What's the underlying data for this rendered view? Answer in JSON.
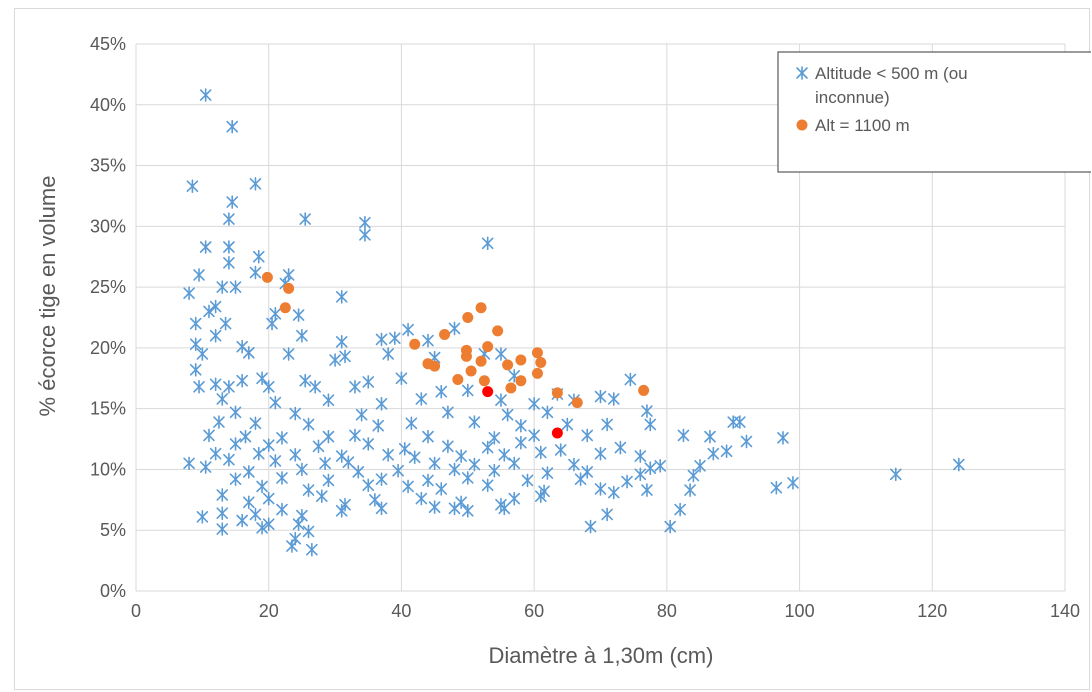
{
  "chart_data": {
    "type": "scatter",
    "xlabel": "Diamètre à 1,30m (cm)",
    "ylabel": "% écorce tige en volume",
    "xlim": [
      0,
      140
    ],
    "ylim": [
      0,
      45
    ],
    "x_ticks": [
      "0",
      "20",
      "40",
      "60",
      "80",
      "100",
      "120",
      "140"
    ],
    "y_ticks": [
      "0%",
      "5%",
      "10%",
      "15%",
      "20%",
      "25%",
      "30%",
      "35%",
      "40%",
      "45%"
    ],
    "grid": true,
    "legend_position": "top-right",
    "legend": [
      {
        "lines": [
          "Altitude < 500 m (ou",
          "inconnue)"
        ],
        "marker": "asterisk",
        "color": "#5b9bd5"
      },
      {
        "lines": [
          "Alt = 1100 m"
        ],
        "marker": "circle",
        "color": "#ed7d31"
      }
    ],
    "series": [
      {
        "name": "Altitude < 500 m (ou inconnue)",
        "marker": "asterisk",
        "color": "#5b9bd5",
        "points": [
          [
            10.5,
            40.8
          ],
          [
            14.5,
            38.2
          ],
          [
            8.5,
            33.3
          ],
          [
            18,
            33.5
          ],
          [
            14.5,
            32
          ],
          [
            14,
            30.6
          ],
          [
            25.5,
            30.6
          ],
          [
            34.5,
            30.3
          ],
          [
            34.5,
            29.3
          ],
          [
            10.5,
            28.3
          ],
          [
            14,
            28.3
          ],
          [
            53,
            28.6
          ],
          [
            18.5,
            27.5
          ],
          [
            14,
            27
          ],
          [
            9.5,
            26
          ],
          [
            18,
            26.2
          ],
          [
            23,
            26
          ],
          [
            13,
            25
          ],
          [
            15,
            25
          ],
          [
            8,
            24.5
          ],
          [
            22.5,
            25.3
          ],
          [
            31,
            24.2
          ],
          [
            11,
            23
          ],
          [
            21,
            22.8
          ],
          [
            24.5,
            22.7
          ],
          [
            12,
            23.4
          ],
          [
            9,
            22
          ],
          [
            13.5,
            22
          ],
          [
            20.5,
            22
          ],
          [
            25,
            21
          ],
          [
            41,
            21.5
          ],
          [
            12,
            21
          ],
          [
            9,
            20.3
          ],
          [
            39,
            20.8
          ],
          [
            44,
            20.6
          ],
          [
            48,
            21.6
          ],
          [
            37,
            20.7
          ],
          [
            31,
            20.5
          ],
          [
            16,
            20.1
          ],
          [
            10,
            19.5
          ],
          [
            17,
            19.6
          ],
          [
            23,
            19.5
          ],
          [
            31.5,
            19.3
          ],
          [
            38,
            19.5
          ],
          [
            52.5,
            19.5
          ],
          [
            55,
            19.5
          ],
          [
            9,
            18.2
          ],
          [
            30,
            19
          ],
          [
            45,
            19.2
          ],
          [
            12,
            17
          ],
          [
            16,
            17.3
          ],
          [
            19,
            17.5
          ],
          [
            25.5,
            17.3
          ],
          [
            35,
            17.2
          ],
          [
            40,
            17.5
          ],
          [
            74.5,
            17.4
          ],
          [
            57,
            17.7
          ],
          [
            9.5,
            16.8
          ],
          [
            14,
            16.8
          ],
          [
            20,
            16.8
          ],
          [
            27,
            16.8
          ],
          [
            33,
            16.8
          ],
          [
            46,
            16.4
          ],
          [
            50,
            16.5
          ],
          [
            63.5,
            16.2
          ],
          [
            70,
            16
          ],
          [
            13,
            15.8
          ],
          [
            21,
            15.5
          ],
          [
            29,
            15.7
          ],
          [
            37,
            15.4
          ],
          [
            43,
            15.8
          ],
          [
            55,
            15.7
          ],
          [
            60,
            15.4
          ],
          [
            66,
            15.7
          ],
          [
            72,
            15.8
          ],
          [
            77,
            14.8
          ],
          [
            15,
            14.7
          ],
          [
            24,
            14.6
          ],
          [
            34,
            14.5
          ],
          [
            47,
            14.7
          ],
          [
            56,
            14.5
          ],
          [
            62,
            14.7
          ],
          [
            12.5,
            13.9
          ],
          [
            18,
            13.8
          ],
          [
            26,
            13.7
          ],
          [
            36.5,
            13.6
          ],
          [
            41.5,
            13.8
          ],
          [
            51,
            13.9
          ],
          [
            58,
            13.6
          ],
          [
            65,
            13.7
          ],
          [
            71,
            13.7
          ],
          [
            77.5,
            13.7
          ],
          [
            90,
            13.9
          ],
          [
            91,
            13.9
          ],
          [
            11,
            12.8
          ],
          [
            16.5,
            12.7
          ],
          [
            22,
            12.6
          ],
          [
            29,
            12.7
          ],
          [
            33,
            12.8
          ],
          [
            44,
            12.7
          ],
          [
            54,
            12.6
          ],
          [
            60,
            12.8
          ],
          [
            68,
            12.8
          ],
          [
            82.5,
            12.8
          ],
          [
            86.5,
            12.7
          ],
          [
            97.5,
            12.6
          ],
          [
            92,
            12.3
          ],
          [
            15,
            12.1
          ],
          [
            20,
            12
          ],
          [
            27.5,
            11.9
          ],
          [
            35,
            12.1
          ],
          [
            40.5,
            11.7
          ],
          [
            47,
            11.9
          ],
          [
            53,
            11.8
          ],
          [
            58,
            12.2
          ],
          [
            64,
            11.6
          ],
          [
            73,
            11.8
          ],
          [
            89,
            11.5
          ],
          [
            12,
            11.3
          ],
          [
            18.5,
            11.3
          ],
          [
            24,
            11.2
          ],
          [
            31,
            11.1
          ],
          [
            38,
            11.2
          ],
          [
            42,
            11
          ],
          [
            49,
            11.1
          ],
          [
            55.5,
            11.2
          ],
          [
            61,
            11.4
          ],
          [
            70,
            11.3
          ],
          [
            76,
            11.1
          ],
          [
            87,
            11.3
          ],
          [
            8,
            10.5
          ],
          [
            14,
            10.8
          ],
          [
            21,
            10.7
          ],
          [
            28.5,
            10.5
          ],
          [
            32,
            10.6
          ],
          [
            45,
            10.5
          ],
          [
            51,
            10.4
          ],
          [
            57,
            10.5
          ],
          [
            66,
            10.4
          ],
          [
            79,
            10.3
          ],
          [
            85,
            10.3
          ],
          [
            124,
            10.4
          ],
          [
            10.5,
            10.2
          ],
          [
            17,
            9.8
          ],
          [
            25,
            10
          ],
          [
            33.5,
            9.8
          ],
          [
            39.5,
            9.9
          ],
          [
            48,
            10
          ],
          [
            54,
            9.9
          ],
          [
            62,
            9.7
          ],
          [
            68,
            9.8
          ],
          [
            76,
            9.6
          ],
          [
            77.5,
            10.1
          ],
          [
            114.5,
            9.6
          ],
          [
            15,
            9.2
          ],
          [
            22,
            9.3
          ],
          [
            29,
            9.1
          ],
          [
            37,
            9.2
          ],
          [
            44,
            9.1
          ],
          [
            50,
            9.3
          ],
          [
            59,
            9.1
          ],
          [
            67,
            9.2
          ],
          [
            74,
            9
          ],
          [
            84,
            9.5
          ],
          [
            99,
            8.9
          ],
          [
            19,
            8.6
          ],
          [
            26,
            8.3
          ],
          [
            35,
            8.7
          ],
          [
            41,
            8.6
          ],
          [
            46,
            8.4
          ],
          [
            53,
            8.7
          ],
          [
            61.5,
            8.2
          ],
          [
            70,
            8.4
          ],
          [
            77,
            8.3
          ],
          [
            83.5,
            8.3
          ],
          [
            96.5,
            8.5
          ],
          [
            13,
            7.9
          ],
          [
            20,
            7.6
          ],
          [
            28,
            7.8
          ],
          [
            36,
            7.5
          ],
          [
            43,
            7.6
          ],
          [
            49,
            7.3
          ],
          [
            57,
            7.6
          ],
          [
            61,
            7.8
          ],
          [
            72,
            8.1
          ],
          [
            17,
            7.3
          ],
          [
            22,
            6.7
          ],
          [
            31.5,
            7.1
          ],
          [
            37,
            6.8
          ],
          [
            45,
            6.9
          ],
          [
            50,
            6.6
          ],
          [
            55,
            7.1
          ],
          [
            10,
            6.1
          ],
          [
            13,
            6.4
          ],
          [
            18,
            6.3
          ],
          [
            25,
            6.2
          ],
          [
            31,
            6.6
          ],
          [
            48,
            6.8
          ],
          [
            55.5,
            6.8
          ],
          [
            71,
            6.3
          ],
          [
            82,
            6.7
          ],
          [
            16,
            5.8
          ],
          [
            20,
            5.5
          ],
          [
            24.5,
            5.5
          ],
          [
            19,
            5.2
          ],
          [
            13,
            5.1
          ],
          [
            26,
            4.9
          ],
          [
            68.5,
            5.3
          ],
          [
            80.5,
            5.3
          ],
          [
            24,
            4.3
          ],
          [
            23.5,
            3.7
          ],
          [
            26.5,
            3.4
          ]
        ]
      },
      {
        "name": "Alt = 1100 m",
        "marker": "circle",
        "color": "#ed7d31",
        "points": [
          [
            19.8,
            25.8
          ],
          [
            23,
            24.9
          ],
          [
            22.5,
            23.3
          ],
          [
            42,
            20.3
          ],
          [
            44,
            18.7
          ],
          [
            45,
            18.5
          ],
          [
            46.5,
            21.1
          ],
          [
            48.5,
            17.4
          ],
          [
            49.8,
            19.8
          ],
          [
            49.8,
            19.3
          ],
          [
            50,
            22.5
          ],
          [
            50.5,
            18.1
          ],
          [
            52,
            23.3
          ],
          [
            52,
            18.9
          ],
          [
            52.5,
            17.3
          ],
          [
            53,
            20.1
          ],
          [
            54.5,
            21.4
          ],
          [
            56,
            18.6
          ],
          [
            56.5,
            16.7
          ],
          [
            58,
            19
          ],
          [
            58,
            17.3
          ],
          [
            60.5,
            19.6
          ],
          [
            61,
            18.8
          ],
          [
            60.5,
            17.9
          ],
          [
            63.5,
            16.3
          ],
          [
            66.5,
            15.5
          ],
          [
            76.5,
            16.5
          ]
        ]
      },
      {
        "name": "",
        "marker": "circle",
        "color": "#ff0000",
        "points": [
          [
            53,
            16.4
          ],
          [
            63.5,
            13
          ]
        ]
      }
    ]
  }
}
